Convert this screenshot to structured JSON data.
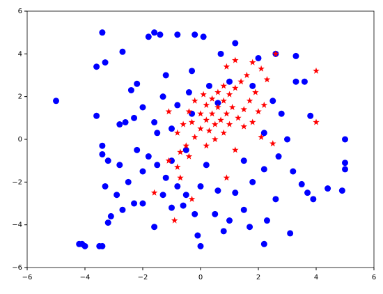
{
  "chart_data": {
    "type": "scatter",
    "xlim": [
      -6,
      6
    ],
    "ylim": [
      -6,
      6
    ],
    "xticks": [
      {
        "value": -6,
        "label": "−6"
      },
      {
        "value": -4,
        "label": "−4"
      },
      {
        "value": -2,
        "label": "−2"
      },
      0,
      2,
      4,
      6
    ],
    "yticks": [
      {
        "value": -6,
        "label": "−6"
      },
      {
        "value": -4,
        "label": "−4"
      },
      {
        "value": -2,
        "label": "−2"
      },
      0,
      2,
      4,
      6
    ],
    "series": [
      {
        "color": "#0000ff",
        "marker": "o",
        "x": [
          -5,
          -4.2,
          -4,
          -3.5,
          -3.4,
          -3.4,
          -3.6,
          -3.3,
          -3.6,
          -3.4,
          -3.4,
          -3.2,
          -3.1,
          -3.2,
          -2.7,
          -2.7,
          -2.8,
          -2.6,
          -1.8,
          -1.6,
          -1.4,
          -0.8,
          -0.2,
          0.1,
          -2.4,
          -2.2,
          5,
          5,
          5,
          4.9,
          3.3,
          3.6,
          3.3,
          3.8,
          3.7,
          3.5,
          2.2,
          2.3,
          0,
          -1.6,
          -0.6,
          -2,
          -2.3,
          2.6,
          2,
          1.2,
          0.7,
          -1,
          -1.5,
          -2,
          -1.8,
          -1.2,
          -0.5,
          -1,
          -1.5,
          -1.6,
          -0.8,
          -0.4,
          0.3,
          1,
          1.8,
          2.5,
          2.8,
          3,
          2.7,
          2.2,
          1.8,
          1.2,
          0.6,
          0,
          -0.5,
          -1,
          0.5,
          1,
          1.5,
          2.6,
          3.2,
          2.2,
          -2.5,
          -2.8,
          -2.2,
          -0.3,
          0.6,
          -0.8,
          1.5,
          0.2,
          -0.3,
          -1.2,
          -2,
          -2.3,
          -1.3,
          -0.2,
          -0.1,
          0.8,
          1.7,
          -1.3,
          -2.9,
          3.9,
          4.4,
          3.1,
          -4.1,
          -3.3
        ],
        "values": [
          1.8,
          -4.9,
          -5,
          -5,
          -5,
          5,
          3.4,
          3.6,
          1.1,
          -0.3,
          -0.7,
          -1,
          -3.6,
          -3.9,
          -3.3,
          4.1,
          0.7,
          0.8,
          4.8,
          5,
          4.9,
          4.9,
          4.9,
          4.8,
          2.3,
          2.6,
          0,
          -1.1,
          -1.4,
          -2.4,
          3.9,
          2.7,
          2.7,
          1.1,
          -2.5,
          -2.1,
          -4.9,
          -3.8,
          -5,
          -4.1,
          -3.1,
          -3,
          -3,
          4,
          3.8,
          4.5,
          4,
          -1,
          -1.2,
          -1.5,
          -0.8,
          -1.8,
          -0.5,
          0.5,
          0.3,
          0.8,
          1.6,
          2.2,
          2.5,
          2.7,
          2.5,
          1.8,
          1.2,
          0,
          -0.8,
          -1.4,
          -2,
          -2.5,
          -2.4,
          -2.2,
          -2.6,
          -3.2,
          -3.5,
          -3.8,
          -3.3,
          -2.8,
          -1.5,
          0.3,
          -2,
          -1.2,
          -0.5,
          1.2,
          1.7,
          -2.2,
          -1,
          -1.2,
          3.2,
          3,
          1.5,
          1,
          2,
          -3.5,
          -4.5,
          -4.3,
          -4.1,
          -2.6,
          -2.6,
          -2.8,
          -2.3,
          -4.4,
          -4.9,
          -2.2
        ]
      },
      {
        "color": "#ff0000",
        "marker": "*",
        "x": [
          2.6,
          4,
          4,
          -1.6,
          -0.9,
          -0.3,
          0.9,
          2.5,
          2.1,
          1.5,
          1.2,
          1.8,
          0.9,
          -0.7,
          -1.1,
          -0.5,
          -0.8,
          -0.2,
          0,
          0.2,
          0.4,
          0.6,
          0.8,
          1,
          1.2,
          1.4,
          1.6,
          0.3,
          0.5,
          0.7,
          0.9,
          1.1,
          -0.3,
          0,
          0.2,
          0.4,
          0.6,
          0.8,
          0.5,
          0.8,
          1,
          1.3,
          1.5,
          1.7,
          1.9,
          2,
          -0.6,
          -0.4,
          -0.2,
          0.1,
          -0.7,
          -0.4,
          0.2,
          1.2,
          1.8,
          2.2,
          2.3,
          2.1,
          -1.1,
          -0.8
        ],
        "values": [
          4,
          3.2,
          0.8,
          -2.5,
          -3.8,
          -2.8,
          -1.8,
          -0.2,
          0.1,
          0.6,
          3.7,
          3.6,
          3.4,
          -1.8,
          -1,
          -0.3,
          0.3,
          0.1,
          0.5,
          0.9,
          1.2,
          1.5,
          1.8,
          2.1,
          2.4,
          2.7,
          3,
          0.4,
          0.7,
          0.9,
          1.2,
          1.5,
          0.8,
          1.2,
          1.6,
          1.9,
          2.2,
          2.5,
          0,
          0.3,
          0.7,
          1,
          1.4,
          1.8,
          2.2,
          1.3,
          0.7,
          1.3,
          1.8,
          2.1,
          -0.6,
          -0.8,
          -0.3,
          -0.5,
          0.8,
          1.6,
          2.8,
          3.3,
          1.3,
          -1.3
        ]
      }
    ]
  }
}
